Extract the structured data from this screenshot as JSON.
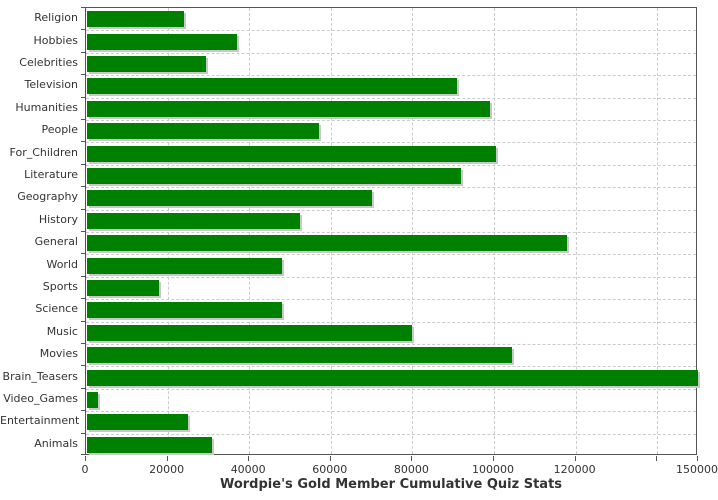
{
  "chart_data": {
    "type": "bar",
    "orientation": "horizontal",
    "title": "Wordpie's Gold Member Cumulative Quiz Stats",
    "xlabel": "",
    "ylabel": "",
    "xlim": [
      0,
      150000
    ],
    "grid": "dashed",
    "legend": "none",
    "bar_color": "#008000",
    "shadow_color": "#c8c8c8",
    "axis_color": "#545454",
    "text_color": "#333333",
    "background_color": "#ffffff",
    "categories": [
      "Religion",
      "Hobbies",
      "Celebrities",
      "Television",
      "Humanities",
      "People",
      "For_Children",
      "Literature",
      "Geography",
      "History",
      "General",
      "World",
      "Sports",
      "Science",
      "Music",
      "Movies",
      "Brain_Teasers",
      "Video_Games",
      "Entertainment",
      "Animals"
    ],
    "values": [
      24000,
      37000,
      29500,
      91000,
      99000,
      57000,
      100500,
      92000,
      70000,
      52500,
      118000,
      48000,
      18000,
      48000,
      80000,
      104500,
      150000,
      3000,
      25000,
      31000
    ],
    "x_ticks": [
      {
        "value": 0,
        "label": "0"
      },
      {
        "value": 20000,
        "label": "20000"
      },
      {
        "value": 40000,
        "label": "40000"
      },
      {
        "value": 60000,
        "label": "60000"
      },
      {
        "value": 80000,
        "label": "80000"
      },
      {
        "value": 100000,
        "label": "100000"
      },
      {
        "value": 120000,
        "label": "120000"
      },
      {
        "value": 140000,
        "label": ""
      },
      {
        "value": 150000,
        "label": "150000"
      }
    ]
  }
}
